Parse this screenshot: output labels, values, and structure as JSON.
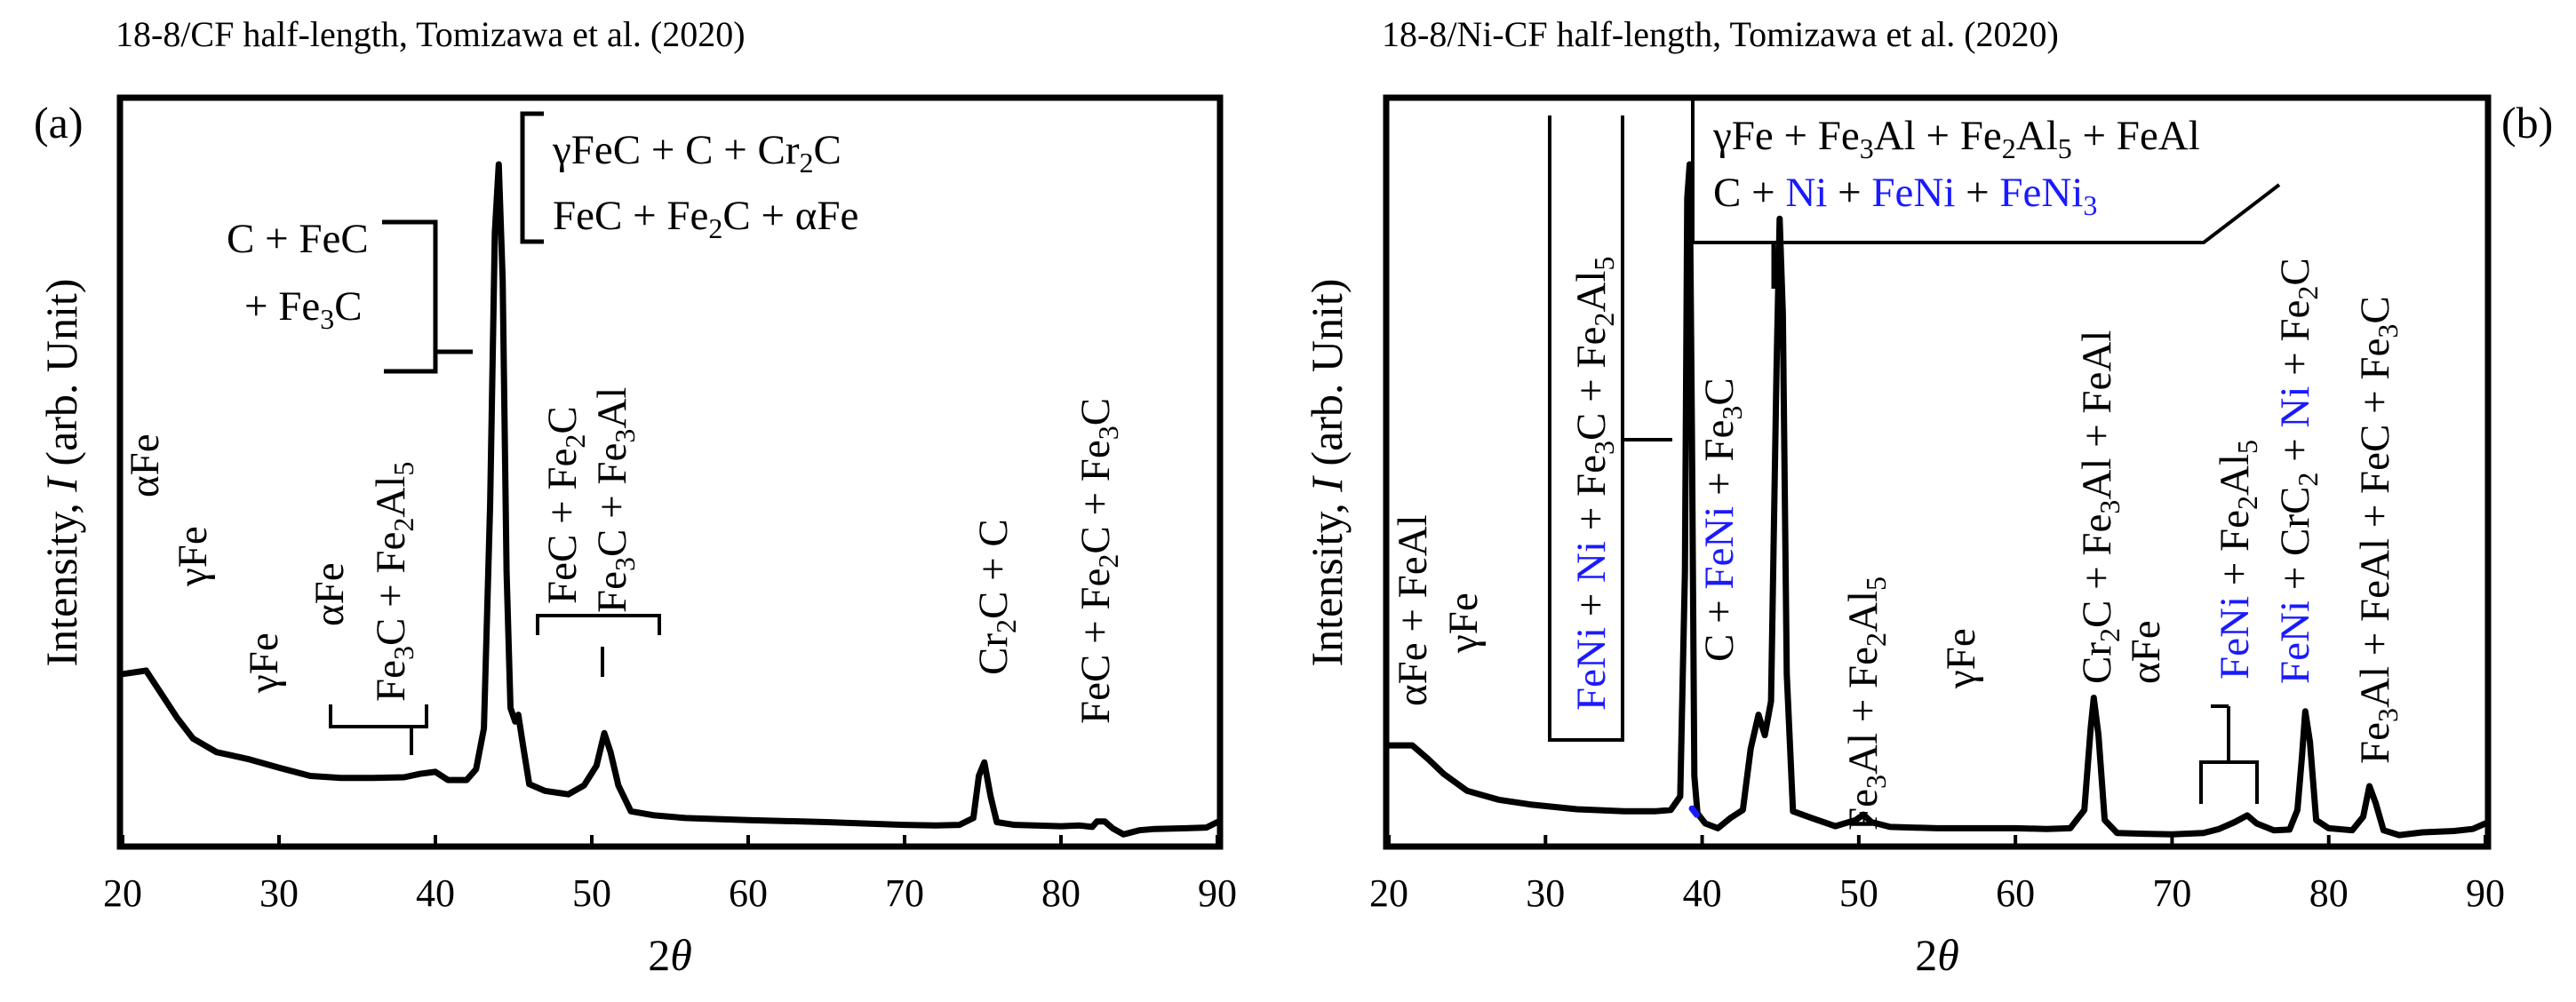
{
  "figure": {
    "panel_a_letter": "(a)",
    "panel_b_letter": "(b)"
  },
  "chart_data": [
    {
      "type": "line",
      "panel": "(a)",
      "title": "18-8/CF half-length,  Tomizawa et al. (2020)",
      "xlabel": "2θ",
      "ylabel": "Intensity, I (arb. Unit)",
      "xlim": [
        20,
        90
      ],
      "ylim": [
        0,
        100
      ],
      "x_ticks": [
        20,
        30,
        40,
        50,
        60,
        70,
        80,
        90
      ],
      "grid": false,
      "series": [
        {
          "name": "18-8/CF half-length",
          "color": "#000000",
          "points": [
            [
              20,
              25
            ],
            [
              21.5,
              25.5
            ],
            [
              22.5,
              22
            ],
            [
              23.5,
              18.5
            ],
            [
              24.5,
              15.5
            ],
            [
              26,
              13.5
            ],
            [
              28,
              12.5
            ],
            [
              30,
              11.2
            ],
            [
              32,
              10
            ],
            [
              34,
              9.7
            ],
            [
              36,
              9.7
            ],
            [
              38,
              9.8
            ],
            [
              39,
              10.3
            ],
            [
              40,
              10.6
            ],
            [
              40.8,
              9.4
            ],
            [
              42,
              9.4
            ],
            [
              42.6,
              11
            ],
            [
              43.1,
              17
            ],
            [
              43.5,
              50
            ],
            [
              43.8,
              90
            ],
            [
              44.05,
              100
            ],
            [
              44.3,
              83
            ],
            [
              44.55,
              40
            ],
            [
              44.8,
              20
            ],
            [
              45.1,
              18
            ],
            [
              45.3,
              19
            ],
            [
              45.6,
              14.5
            ],
            [
              46,
              8.8
            ],
            [
              47,
              7.8
            ],
            [
              48.5,
              7.3
            ],
            [
              49.5,
              8.6
            ],
            [
              50.3,
              11.5
            ],
            [
              50.8,
              16.3
            ],
            [
              51.2,
              13.5
            ],
            [
              51.7,
              8.6
            ],
            [
              52.5,
              4.8
            ],
            [
              54,
              4.2
            ],
            [
              56,
              3.8
            ],
            [
              60,
              3.5
            ],
            [
              65,
              3.2
            ],
            [
              70,
              2.8
            ],
            [
              72,
              2.7
            ],
            [
              73.5,
              2.8
            ],
            [
              74.4,
              3.8
            ],
            [
              74.75,
              10
            ],
            [
              75.1,
              12
            ],
            [
              75.5,
              7
            ],
            [
              75.9,
              3.2
            ],
            [
              77,
              2.8
            ],
            [
              80,
              2.6
            ],
            [
              81.2,
              2.7
            ],
            [
              82,
              2.5
            ],
            [
              82.3,
              3.3
            ],
            [
              82.8,
              3.3
            ],
            [
              83.3,
              2.3
            ],
            [
              84,
              1.4
            ],
            [
              85,
              2
            ],
            [
              86,
              2.2
            ],
            [
              88,
              2.3
            ],
            [
              89.3,
              2.4
            ],
            [
              90,
              3.2
            ]
          ]
        }
      ],
      "annotations": [
        {
          "kind": "text",
          "text": "αFe"
        },
        {
          "kind": "text",
          "text": "γFe"
        },
        {
          "kind": "text",
          "text": "γFe"
        },
        {
          "kind": "text",
          "text": "αFe"
        },
        {
          "kind": "bracket",
          "text": "Fe₃C + Fe₂Al₅"
        },
        {
          "kind": "bracket",
          "text": "C + FeC + Fe₃C"
        },
        {
          "kind": "bracket",
          "text": "γFeC + C + Cr₂C FeC + Fe₂C + αFe"
        },
        {
          "kind": "bracket",
          "text": "FeC + Fe₂C Fe₃C + Fe₃Al"
        },
        {
          "kind": "text",
          "text": "Cr₂C + C"
        },
        {
          "kind": "text",
          "text": "FeC + Fe₂C + Fe₃C"
        }
      ]
    },
    {
      "type": "line",
      "panel": "(b)",
      "title": "18-8/Ni-CF half-length,  Tomizawa et al. (2020)",
      "xlabel": "2θ",
      "ylabel": "Intensity, I (arb. Unit)",
      "xlim": [
        20,
        90
      ],
      "ylim": [
        0,
        100
      ],
      "x_ticks": [
        20,
        30,
        40,
        50,
        60,
        70,
        80,
        90
      ],
      "grid": false,
      "series": [
        {
          "name": "18-8/Ni-CF half-length",
          "color": "#000000",
          "points": [
            [
              20,
              14.5
            ],
            [
              21.5,
              14.5
            ],
            [
              22.5,
              12.5
            ],
            [
              23.5,
              10.3
            ],
            [
              25,
              7.8
            ],
            [
              27,
              6.5
            ],
            [
              29,
              5.8
            ],
            [
              32,
              5.1
            ],
            [
              35,
              4.8
            ],
            [
              37,
              4.8
            ],
            [
              38,
              5
            ],
            [
              38.6,
              7
            ],
            [
              38.9,
              40
            ],
            [
              39.05,
              95
            ],
            [
              39.2,
              100
            ],
            [
              39.35,
              60
            ],
            [
              39.5,
              10
            ],
            [
              39.7,
              4.5
            ],
            [
              40.2,
              3
            ],
            [
              41,
              2.3
            ],
            [
              41.8,
              3.8
            ],
            [
              42.6,
              5
            ],
            [
              43.1,
              14
            ],
            [
              43.6,
              19
            ],
            [
              44,
              16
            ],
            [
              44.4,
              21
            ],
            [
              44.75,
              70
            ],
            [
              44.95,
              92
            ],
            [
              45.15,
              78
            ],
            [
              45.4,
              25
            ],
            [
              45.8,
              4.8
            ],
            [
              47,
              3.8
            ],
            [
              48.5,
              2.6
            ],
            [
              49.8,
              3.5
            ],
            [
              50.3,
              4.3
            ],
            [
              50.8,
              3.2
            ],
            [
              52,
              2.5
            ],
            [
              55,
              2.3
            ],
            [
              60,
              2.3
            ],
            [
              62,
              2.2
            ],
            [
              63.5,
              2.3
            ],
            [
              64.4,
              5
            ],
            [
              64.8,
              17
            ],
            [
              65,
              21.5
            ],
            [
              65.3,
              16
            ],
            [
              65.7,
              3.5
            ],
            [
              66.5,
              1.6
            ],
            [
              68,
              1.5
            ],
            [
              70,
              1.4
            ],
            [
              72,
              1.6
            ],
            [
              73,
              2.2
            ],
            [
              74,
              3.2
            ],
            [
              74.8,
              4.2
            ],
            [
              75.4,
              3
            ],
            [
              76.5,
              2
            ],
            [
              77.5,
              2.1
            ],
            [
              78,
              5
            ],
            [
              78.3,
              13
            ],
            [
              78.5,
              19.5
            ],
            [
              78.8,
              15
            ],
            [
              79.2,
              3.5
            ],
            [
              80,
              2.3
            ],
            [
              81.5,
              2
            ],
            [
              82.2,
              4
            ],
            [
              82.6,
              8.5
            ],
            [
              83,
              6
            ],
            [
              83.5,
              2
            ],
            [
              84.5,
              1.3
            ],
            [
              86,
              1.7
            ],
            [
              88,
              1.9
            ],
            [
              89.2,
              2.2
            ],
            [
              90,
              3
            ]
          ]
        },
        {
          "name": "blue marker",
          "color": "#1a1aff",
          "points": [
            [
              39.35,
              5.2
            ],
            [
              39.65,
              4.3
            ]
          ]
        }
      ],
      "annotations": [
        {
          "kind": "text",
          "text": "αFe + FeAl"
        },
        {
          "kind": "text",
          "text": "γFe"
        },
        {
          "kind": "bracket",
          "text": "FeNi + Ni + Fe₃C + Fe₂Al₅"
        },
        {
          "kind": "text",
          "text": "C + FeNi + Fe₃C"
        },
        {
          "kind": "box",
          "text": "γFe + Fe₃Al + Fe₂Al₅ + FeAl C + Ni + FeNi + FeNi₃"
        },
        {
          "kind": "text",
          "text": "Fe₃Al + Fe₂Al₅"
        },
        {
          "kind": "text",
          "text": "γFe"
        },
        {
          "kind": "text",
          "text": "Cr₂C + Fe₃Al + FeAl"
        },
        {
          "kind": "text",
          "text": "αFe"
        },
        {
          "kind": "bracket",
          "text": "FeNi + Fe₂Al₅"
        },
        {
          "kind": "text",
          "text": "FeNi + CrC₂ + Ni + Fe₂C"
        },
        {
          "kind": "text",
          "text": "Fe₃Al + FeAl + FeC + Fe₃C"
        }
      ]
    }
  ]
}
